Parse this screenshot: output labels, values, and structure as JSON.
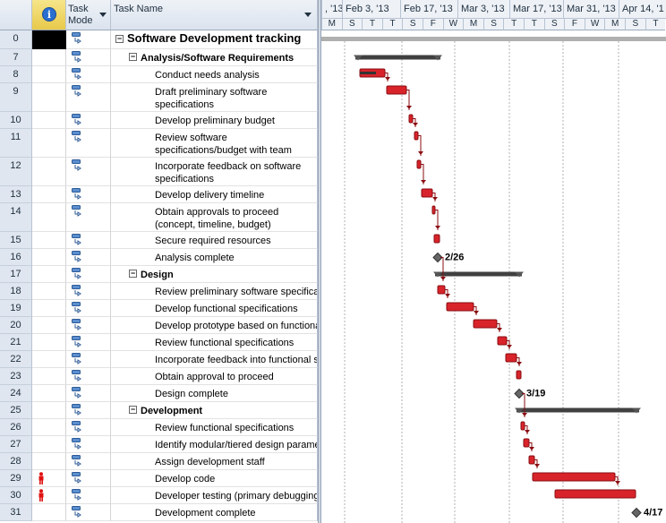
{
  "columns": {
    "mode_line1": "Task",
    "mode_line2": "Mode",
    "name": "Task Name"
  },
  "timescale": {
    "weeks": [
      ", '13",
      "Feb 3, '13",
      "Feb 17, '13",
      "Mar 3, '13",
      "Mar 17, '13",
      "Mar 31, '13",
      "Apr 14, '1"
    ],
    "days": [
      "M",
      "S",
      "T",
      "T",
      "S",
      "F",
      "W",
      "M",
      "S",
      "T",
      "T",
      "S",
      "F",
      "W",
      "M",
      "S",
      "T"
    ]
  },
  "rows": [
    {
      "id": "0",
      "name": "Software Development tracking",
      "level": 0,
      "summary": true,
      "selected": true
    },
    {
      "id": "7",
      "name": "Analysis/Software Requirements",
      "level": 1,
      "summary": true
    },
    {
      "id": "8",
      "name": "Conduct needs analysis",
      "level": 2
    },
    {
      "id": "9",
      "name": "Draft preliminary software specifications",
      "level": 2,
      "wrap": true
    },
    {
      "id": "10",
      "name": "Develop preliminary budget",
      "level": 2
    },
    {
      "id": "11",
      "name": "Review software specifications/budget with team",
      "level": 2,
      "wrap": true
    },
    {
      "id": "12",
      "name": "Incorporate feedback on software specifications",
      "level": 2,
      "wrap": true
    },
    {
      "id": "13",
      "name": "Develop delivery timeline",
      "level": 2
    },
    {
      "id": "14",
      "name": "Obtain approvals to proceed (concept, timeline, budget)",
      "level": 2,
      "wrap": true
    },
    {
      "id": "15",
      "name": "Secure required resources",
      "level": 2
    },
    {
      "id": "16",
      "name": "Analysis complete",
      "level": 2
    },
    {
      "id": "17",
      "name": "Design",
      "level": 1,
      "summary": true
    },
    {
      "id": "18",
      "name": "Review preliminary software specifications",
      "level": 2
    },
    {
      "id": "19",
      "name": "Develop functional specifications",
      "level": 2
    },
    {
      "id": "20",
      "name": "Develop prototype based on functional specifications",
      "level": 2
    },
    {
      "id": "21",
      "name": "Review functional specifications",
      "level": 2
    },
    {
      "id": "22",
      "name": "Incorporate feedback into functional specifications",
      "level": 2
    },
    {
      "id": "23",
      "name": "Obtain approval to proceed",
      "level": 2
    },
    {
      "id": "24",
      "name": "Design complete",
      "level": 2
    },
    {
      "id": "25",
      "name": "Development",
      "level": 1,
      "summary": true
    },
    {
      "id": "26",
      "name": "Review functional specifications",
      "level": 2
    },
    {
      "id": "27",
      "name": "Identify modular/tiered design parameters",
      "level": 2
    },
    {
      "id": "28",
      "name": "Assign development staff",
      "level": 2
    },
    {
      "id": "29",
      "name": "Develop code",
      "level": 2,
      "resource_alert": true
    },
    {
      "id": "30",
      "name": "Developer testing (primary debugging)",
      "level": 2,
      "resource_alert": true
    },
    {
      "id": "31",
      "name": "Development complete",
      "level": 2
    }
  ],
  "milestone_labels": {
    "analysis": "2/26",
    "design": "3/19",
    "development": "4/17"
  },
  "colors": {
    "bar": "#d8232a",
    "summary": "#404040",
    "selected": "#000000",
    "header": "#dbe3ee"
  }
}
